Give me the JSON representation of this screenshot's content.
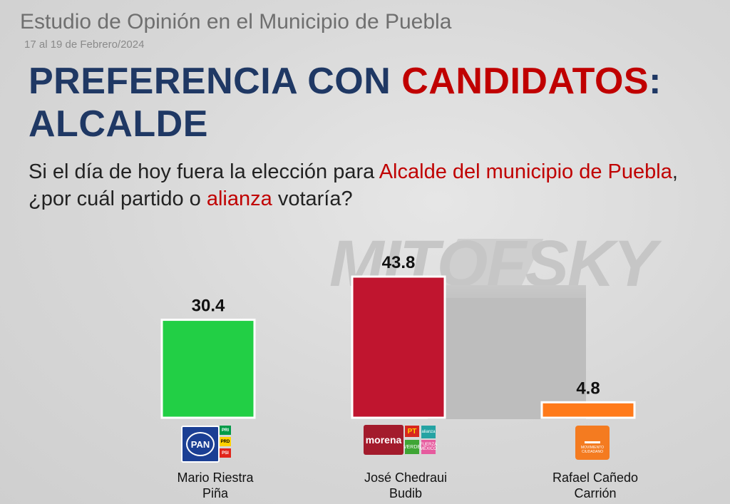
{
  "header": {
    "title": "Estudio de Opinión en el Municipio de Puebla",
    "date": "17 al 19 de Febrero/2024"
  },
  "headline": {
    "part1": "PREFERENCIA CON ",
    "part2": "CANDIDATOS",
    "part3": ":",
    "line2": "ALCALDE"
  },
  "question": {
    "part1": "Si el día de hoy fuera la elección para ",
    "part2": "Alcalde del municipio de Puebla",
    "part3": ", ¿por cuál partido o ",
    "part4": "alianza",
    "part5": " votaría?"
  },
  "watermark": "MITOFSKY",
  "logos": {
    "pan": "PAN",
    "pri": "PRI",
    "prd": "PRD",
    "psi": "PSI",
    "morena": "morena",
    "pt": "PT",
    "verde": "VERDE",
    "alianza": "alianza",
    "fxm": "FUERZA MÉXICO",
    "mc": "MOVIMIENTO CIUDADANO"
  },
  "colors": {
    "green": "#22cf45",
    "red": "#c0152f",
    "orange": "#ff7a1a"
  },
  "chart_data": {
    "type": "bar",
    "categories": [
      "Mario Riestra Piña",
      "José Chedraui Budib",
      "Rafael Cañedo Carrión"
    ],
    "category_lines": [
      [
        "Mario Riestra",
        "Piña"
      ],
      [
        "José Chedraui",
        "Budib"
      ],
      [
        "Rafael Cañedo",
        "Carrión"
      ]
    ],
    "values": [
      30.4,
      43.8,
      4.8
    ],
    "value_labels": [
      "30.4",
      "43.8",
      "4.8"
    ],
    "colors": [
      "#22cf45",
      "#c0152f",
      "#ff7a1a"
    ],
    "ylim": [
      0,
      43.8
    ],
    "grid": false,
    "title": "",
    "xlabel": "",
    "ylabel": ""
  }
}
